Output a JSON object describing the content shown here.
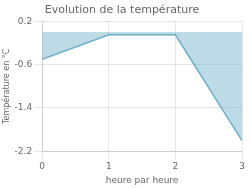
{
  "chart_data": {
    "type": "area",
    "title": "Evolution de la température",
    "xlabel": "heure par heure",
    "ylabel": "Température en °C",
    "x": [
      0,
      1,
      2,
      3
    ],
    "values": [
      -0.5,
      -0.05,
      -0.05,
      -2.0
    ],
    "color": "#6ab0c8",
    "xlim": [
      0,
      3
    ],
    "ylim": [
      -2.2,
      0.2
    ],
    "xticks": [
      0,
      1,
      2,
      3
    ],
    "yticks": [
      0.2,
      -0.6,
      -1.4,
      -2.2
    ],
    "grid": true
  }
}
